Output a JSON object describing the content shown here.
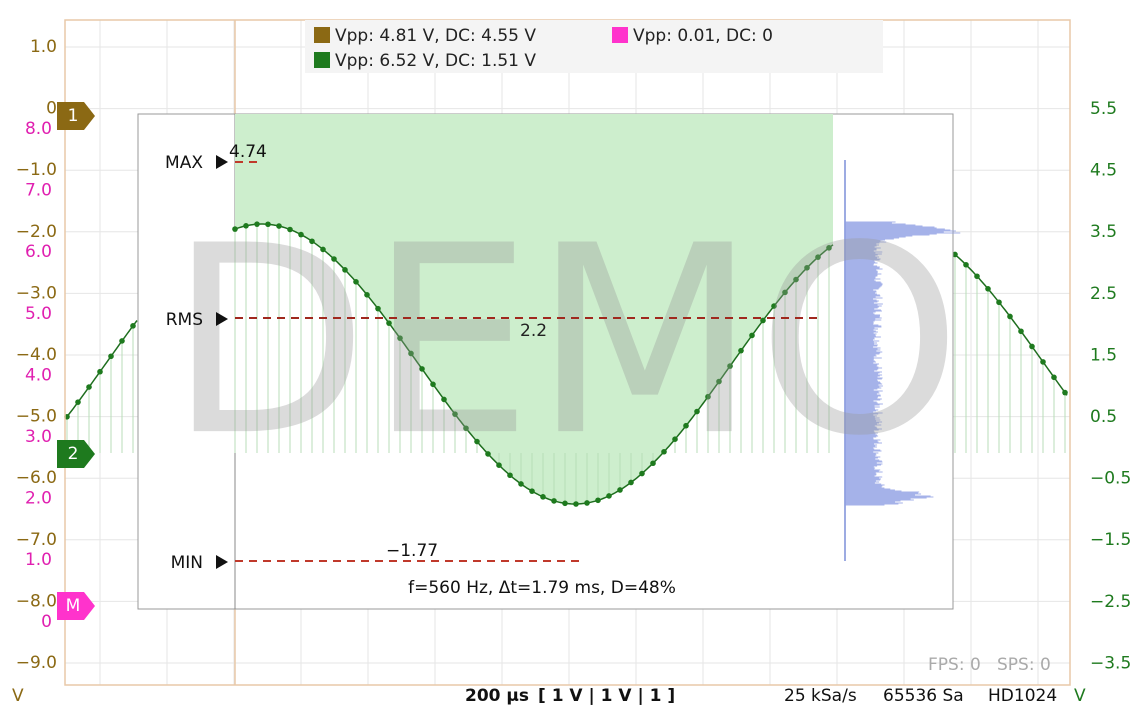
{
  "legend": [
    "Vpp: 4.81 V, DC: 4.55 V",
    "Vpp: 0.01, DC: 0",
    "Vpp: 6.52 V, DC: 1.51 V"
  ],
  "left_axis_ch1": [
    "1.0",
    "0",
    "−1.0",
    "−2.0",
    "−3.0",
    "−4.0",
    "−5.0",
    "−6.0",
    "−7.0",
    "−8.0",
    "−9.0"
  ],
  "left_axis_math": [
    "8.0",
    "7.0",
    "6.0",
    "5.0",
    "4.0",
    "3.0",
    "2.0",
    "1.0",
    "0"
  ],
  "right_axis_ch2": [
    "5.5",
    "4.5",
    "3.5",
    "2.5",
    "1.5",
    "0.5",
    "−0.5",
    "−1.5",
    "−2.5",
    "−3.5"
  ],
  "channel_markers": [
    "1",
    "2",
    "M"
  ],
  "measurements": {
    "max_label": "MAX",
    "max": "4.74",
    "rms_label": "RMS",
    "rms": "2.2",
    "min_label": "MIN",
    "min": "−1.77",
    "summary": "f=560 Hz, Δt=1.79 ms, D=48%"
  },
  "status": {
    "left_unit": "V",
    "timebase": "200 µs",
    "scale": "[ 1 V | 1 V | 1 ]",
    "sample_rate": "25 kSa/s",
    "samples": "65536 Sa",
    "mode": "HD1024",
    "right_unit": "V",
    "fps": "FPS: 0",
    "sps": "SPS: 0"
  },
  "watermark": "DEMO"
}
